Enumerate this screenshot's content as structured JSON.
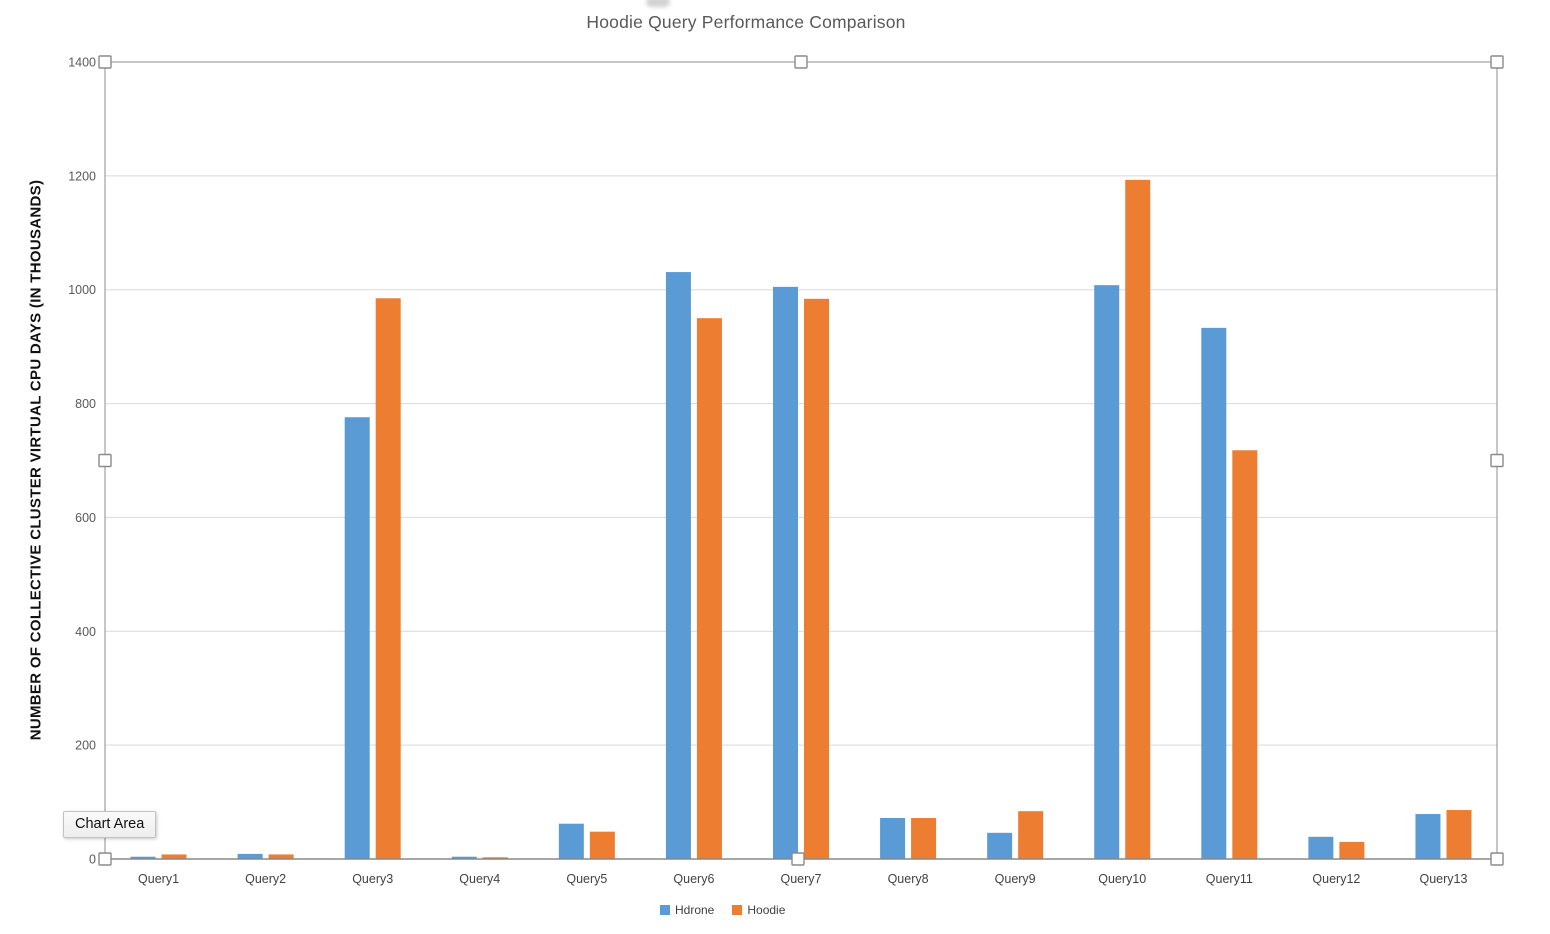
{
  "tooltip": {
    "label": "Chart Area"
  },
  "chart_data": {
    "type": "bar",
    "title": "Hoodie Query Performance Comparison",
    "xlabel": "",
    "ylabel": "NUMBER OF COLLECTIVE CLUSTER VIRTUAL CPU DAYS (IN THOUSANDS)",
    "ylim": [
      0,
      1400
    ],
    "yticks": [
      0,
      200,
      400,
      600,
      800,
      1000,
      1200,
      1400
    ],
    "grid": true,
    "legend_position": "bottom-center",
    "categories": [
      "Query1",
      "Query2",
      "Query3",
      "Query4",
      "Query5",
      "Query6",
      "Query7",
      "Query8",
      "Query9",
      "Query10",
      "Query11",
      "Query12",
      "Query13"
    ],
    "series": [
      {
        "name": "Hdrone",
        "color": "#5B9BD5",
        "values": [
          4,
          9,
          776,
          4,
          62,
          1031,
          1005,
          72,
          46,
          1008,
          933,
          39,
          79
        ]
      },
      {
        "name": "Hoodie",
        "color": "#ED7D31",
        "values": [
          8,
          8,
          985,
          3,
          48,
          950,
          984,
          72,
          84,
          1193,
          718,
          30,
          86
        ]
      }
    ],
    "colors": {
      "gridline": "#d9d9d9",
      "axis_line": "#808080",
      "selection_border": "#8c8c8c",
      "tick_label": "#595959",
      "title": "#595959"
    }
  }
}
